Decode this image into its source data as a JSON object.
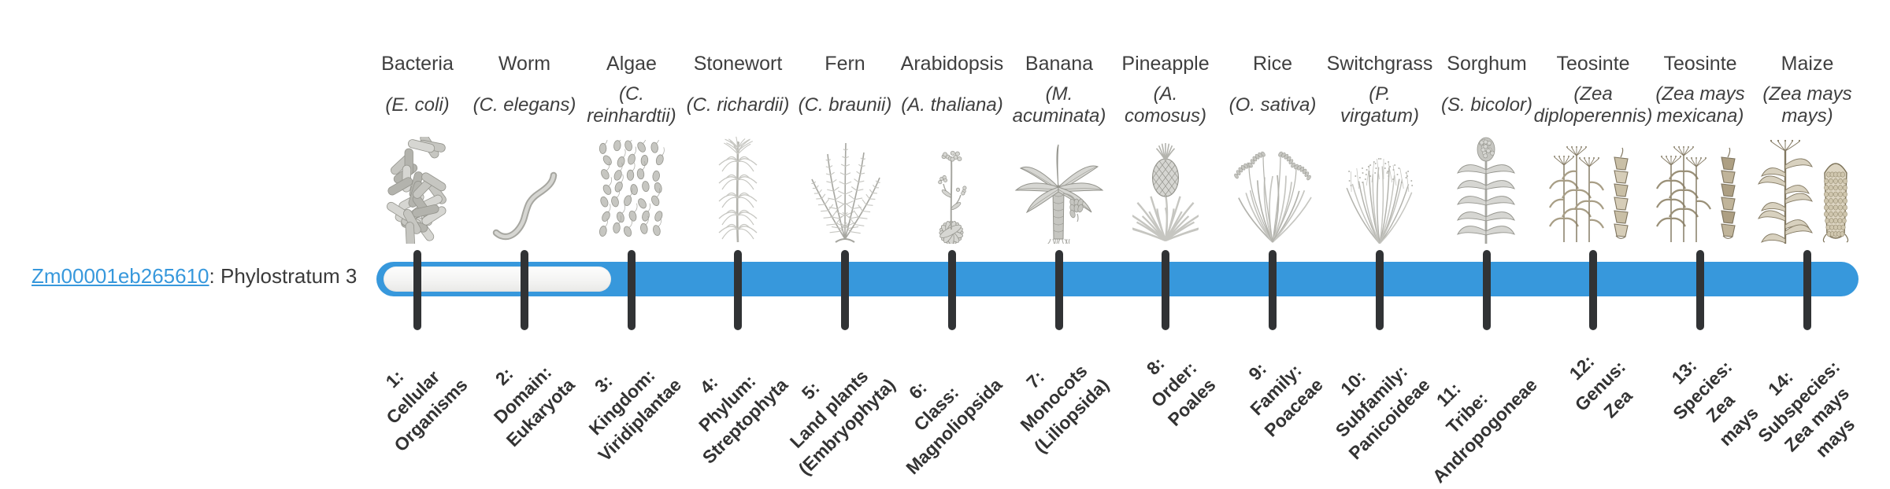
{
  "gene": {
    "id": "Zm00001eb265610",
    "label_suffix": ": Phylostratum 3",
    "phylostratum_shown": "Phylostratum 3"
  },
  "timeline": {
    "origin_stratum": 3,
    "total_strata": 14
  },
  "colors": {
    "bar_blue": "#3798dc",
    "tick_dark": "#313335",
    "link_blue": "#3798dc",
    "text_dark": "#3a3a3a"
  },
  "organisms": [
    {
      "name": "Bacteria",
      "sci": "(E. coli)",
      "icon": "bacteria"
    },
    {
      "name": "Worm",
      "sci": "(C. elegans)",
      "icon": "worm"
    },
    {
      "name": "Algae",
      "sci": "(C.\nreinhardtii)",
      "icon": "algae"
    },
    {
      "name": "Stonewort",
      "sci": "(C. richardii)",
      "icon": "stonewort"
    },
    {
      "name": "Fern",
      "sci": "(C. braunii)",
      "icon": "fern"
    },
    {
      "name": "Arabidopsis",
      "sci": "(A. thaliana)",
      "icon": "arabidopsis"
    },
    {
      "name": "Banana",
      "sci": "(M.\nacuminata)",
      "icon": "banana"
    },
    {
      "name": "Pineapple",
      "sci": "(A.\ncomosus)",
      "icon": "pineapple"
    },
    {
      "name": "Rice",
      "sci": "(O. sativa)",
      "icon": "rice"
    },
    {
      "name": "Switchgrass",
      "sci": "(P.\nvirgatum)",
      "icon": "switchgrass"
    },
    {
      "name": "Sorghum",
      "sci": "(S. bicolor)",
      "icon": "sorghum"
    },
    {
      "name": "Teosinte",
      "sci": "(Zea\ndiploperennis)",
      "icon": "teosinte-diploperennis"
    },
    {
      "name": "Teosinte",
      "sci": "(Zea mays\nmexicana)",
      "icon": "teosinte-mexicana"
    },
    {
      "name": "Maize",
      "sci": "(Zea mays\nmays)",
      "icon": "maize"
    }
  ],
  "phylostrata": [
    {
      "label": "1:\nCellular\nOrganisms"
    },
    {
      "label": "2:\nDomain:\nEukaryota"
    },
    {
      "label": "3:\nKingdom:\nViridiplantae"
    },
    {
      "label": "4:\nPhylum:\nStreptophyta"
    },
    {
      "label": "5:\nLand plants\n(Embryophyta)"
    },
    {
      "label": "6:\nClass:\nMagnoliopsida"
    },
    {
      "label": "7:\nMonocots\n(Liliopsida)"
    },
    {
      "label": "8:\nOrder:\nPoales"
    },
    {
      "label": "9:\nFamily:\nPoaceae"
    },
    {
      "label": "10:\nSubfamily:\nPanicoideae"
    },
    {
      "label": "11:\nTribe:\nAndropogoneae"
    },
    {
      "label": "12:\nGenus:\nZea"
    },
    {
      "label": "13:\nSpecies:\nZea\nmays"
    },
    {
      "label": "14:\nSubspecies:\nZea mays\nmays"
    }
  ]
}
